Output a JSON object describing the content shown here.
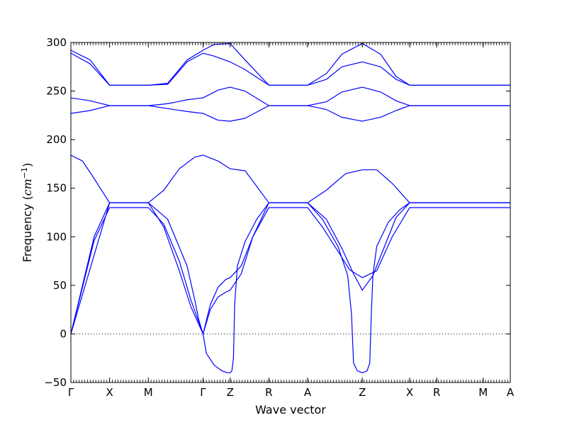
{
  "chart_data": {
    "type": "line",
    "title": "",
    "xlabel": "Wave vector",
    "ylabel": "Frequency",
    "ylabel_unit": "cm",
    "ylabel_unit_exp": "−1",
    "ylim": [
      -50,
      300
    ],
    "yticks": [
      -50,
      0,
      50,
      100,
      150,
      200,
      250,
      300
    ],
    "ytick_labels": [
      "−50",
      "0",
      "50",
      "100",
      "150",
      "200",
      "250",
      "300"
    ],
    "xlim": [
      0,
      11.35
    ],
    "x_points": [
      {
        "label": "Γ",
        "x": 0
      },
      {
        "label": "X",
        "x": 1
      },
      {
        "label": "M",
        "x": 2
      },
      {
        "label": "Γ",
        "x": 3.414
      },
      {
        "label": "Z",
        "x": 4.114
      },
      {
        "label": "R",
        "x": 5.114
      },
      {
        "label": "A",
        "x": 6.114
      },
      {
        "label": "Z",
        "x": 7.528
      },
      {
        "label": "X",
        "x": 8.75
      },
      {
        "label": "R",
        "x": 9.45
      },
      {
        "label": "M",
        "x": 10.65
      },
      {
        "label": "A",
        "x": 11.35
      }
    ],
    "zero_line": true,
    "line_color": "#0000ff",
    "series": [
      {
        "x": [
          0,
          0.5,
          1,
          1.5,
          2,
          2.5,
          3,
          3.414,
          3.7,
          4.114,
          4.5,
          5.114,
          5.5,
          6.114,
          6.6,
          7.0,
          7.528,
          8.0,
          8.4,
          8.75,
          9.45,
          10.65,
          11.35
        ],
        "values": [
          292,
          282,
          256,
          256,
          256,
          258,
          282,
          292,
          298,
          299,
          282,
          256,
          256,
          256,
          268,
          288,
          299,
          288,
          265,
          256,
          256,
          256,
          256
        ]
      },
      {
        "x": [
          0,
          0.5,
          1,
          1.5,
          2,
          2.5,
          3,
          3.414,
          3.7,
          4.114,
          4.5,
          5.114,
          5.5,
          6.114,
          6.6,
          7.0,
          7.528,
          8.0,
          8.4,
          8.75,
          9.45,
          10.65,
          11.35
        ],
        "values": [
          289,
          278,
          256,
          256,
          256,
          257,
          280,
          289,
          286,
          280,
          272,
          256,
          256,
          256,
          262,
          275,
          280,
          275,
          262,
          256,
          256,
          256,
          256
        ]
      },
      {
        "x": [
          0,
          0.5,
          1,
          2,
          2.5,
          3,
          3.414,
          3.8,
          4.114,
          4.5,
          5.114,
          6.114,
          6.6,
          7.0,
          7.528,
          8.0,
          8.4,
          8.75,
          9.45,
          10.65,
          11.35
        ],
        "values": [
          243,
          240,
          235,
          235,
          237,
          241,
          243,
          251,
          254,
          250,
          235,
          235,
          239,
          249,
          254,
          249,
          240,
          235,
          235,
          235,
          235
        ]
      },
      {
        "x": [
          0,
          0.5,
          1,
          2,
          2.5,
          3,
          3.414,
          3.8,
          4.114,
          4.5,
          5.114,
          6.114,
          6.6,
          7.0,
          7.528,
          8.0,
          8.4,
          8.75,
          9.45,
          10.65,
          11.35
        ],
        "values": [
          227,
          230,
          235,
          235,
          232,
          229,
          227,
          220,
          219,
          222,
          235,
          235,
          231,
          223,
          219,
          223,
          230,
          235,
          235,
          235,
          235
        ]
      },
      {
        "x": [
          0,
          0.3,
          0.6,
          1,
          2,
          2.4,
          2.8,
          3.2,
          3.414,
          3.8,
          4.114,
          4.5,
          5.114,
          6.114,
          6.6,
          7.1,
          7.528,
          7.9,
          8.3,
          8.75,
          9.45,
          10.65,
          11.35
        ],
        "values": [
          184,
          178,
          160,
          135,
          135,
          148,
          170,
          182,
          184,
          178,
          170,
          168,
          135,
          135,
          148,
          165,
          169,
          169,
          155,
          135,
          135,
          135,
          135
        ]
      },
      {
        "x": [
          0,
          0.3,
          0.6,
          1,
          2,
          2.4,
          2.8,
          3.1,
          3.414,
          3.6,
          3.8,
          4.0,
          4.114,
          4.4,
          4.7,
          5.114,
          6.114,
          6.6,
          7.0,
          7.3,
          7.528,
          7.8,
          8.1,
          8.4,
          8.75,
          9.45,
          10.65,
          11.35
        ],
        "values": [
          0,
          50,
          100,
          135,
          135,
          110,
          65,
          28,
          0,
          25,
          38,
          43,
          45,
          62,
          100,
          135,
          135,
          118,
          88,
          62,
          45,
          60,
          90,
          120,
          135,
          135,
          135,
          135
        ]
      },
      {
        "x": [
          0,
          0.3,
          0.6,
          1,
          2,
          2.4,
          2.8,
          3.1,
          3.414,
          3.6,
          3.8,
          4.0,
          4.114,
          4.4,
          4.7,
          5.114,
          6.114,
          6.5,
          6.9,
          7.2,
          7.528,
          7.9,
          8.3,
          8.75,
          9.45,
          10.65,
          11.35
        ],
        "values": [
          0,
          48,
          96,
          130,
          130,
          113,
          75,
          35,
          0,
          30,
          48,
          56,
          58,
          70,
          100,
          130,
          130,
          110,
          85,
          66,
          58,
          65,
          100,
          130,
          130,
          130,
          130
        ]
      },
      {
        "x": [
          0,
          1,
          2,
          2.5,
          3,
          3.2,
          3.3,
          3.414,
          3.5,
          3.7,
          3.9,
          4.05,
          4.114,
          4.16,
          4.2,
          4.23,
          4.3,
          4.5,
          4.8,
          5.114,
          6.114,
          6.5,
          6.9,
          7.15,
          7.25,
          7.3,
          7.4,
          7.528,
          7.65,
          7.72,
          7.76,
          7.8,
          7.9,
          8.2,
          8.5,
          8.75,
          9.45,
          10.65,
          11.35
        ],
        "values": [
          0,
          135,
          135,
          118,
          70,
          35,
          15,
          0,
          -20,
          -32,
          -38,
          -40,
          -40,
          -38,
          -25,
          30,
          70,
          95,
          118,
          135,
          135,
          118,
          90,
          60,
          20,
          -30,
          -38,
          -40,
          -38,
          -30,
          20,
          60,
          90,
          115,
          128,
          135,
          135,
          135,
          135
        ]
      }
    ]
  }
}
